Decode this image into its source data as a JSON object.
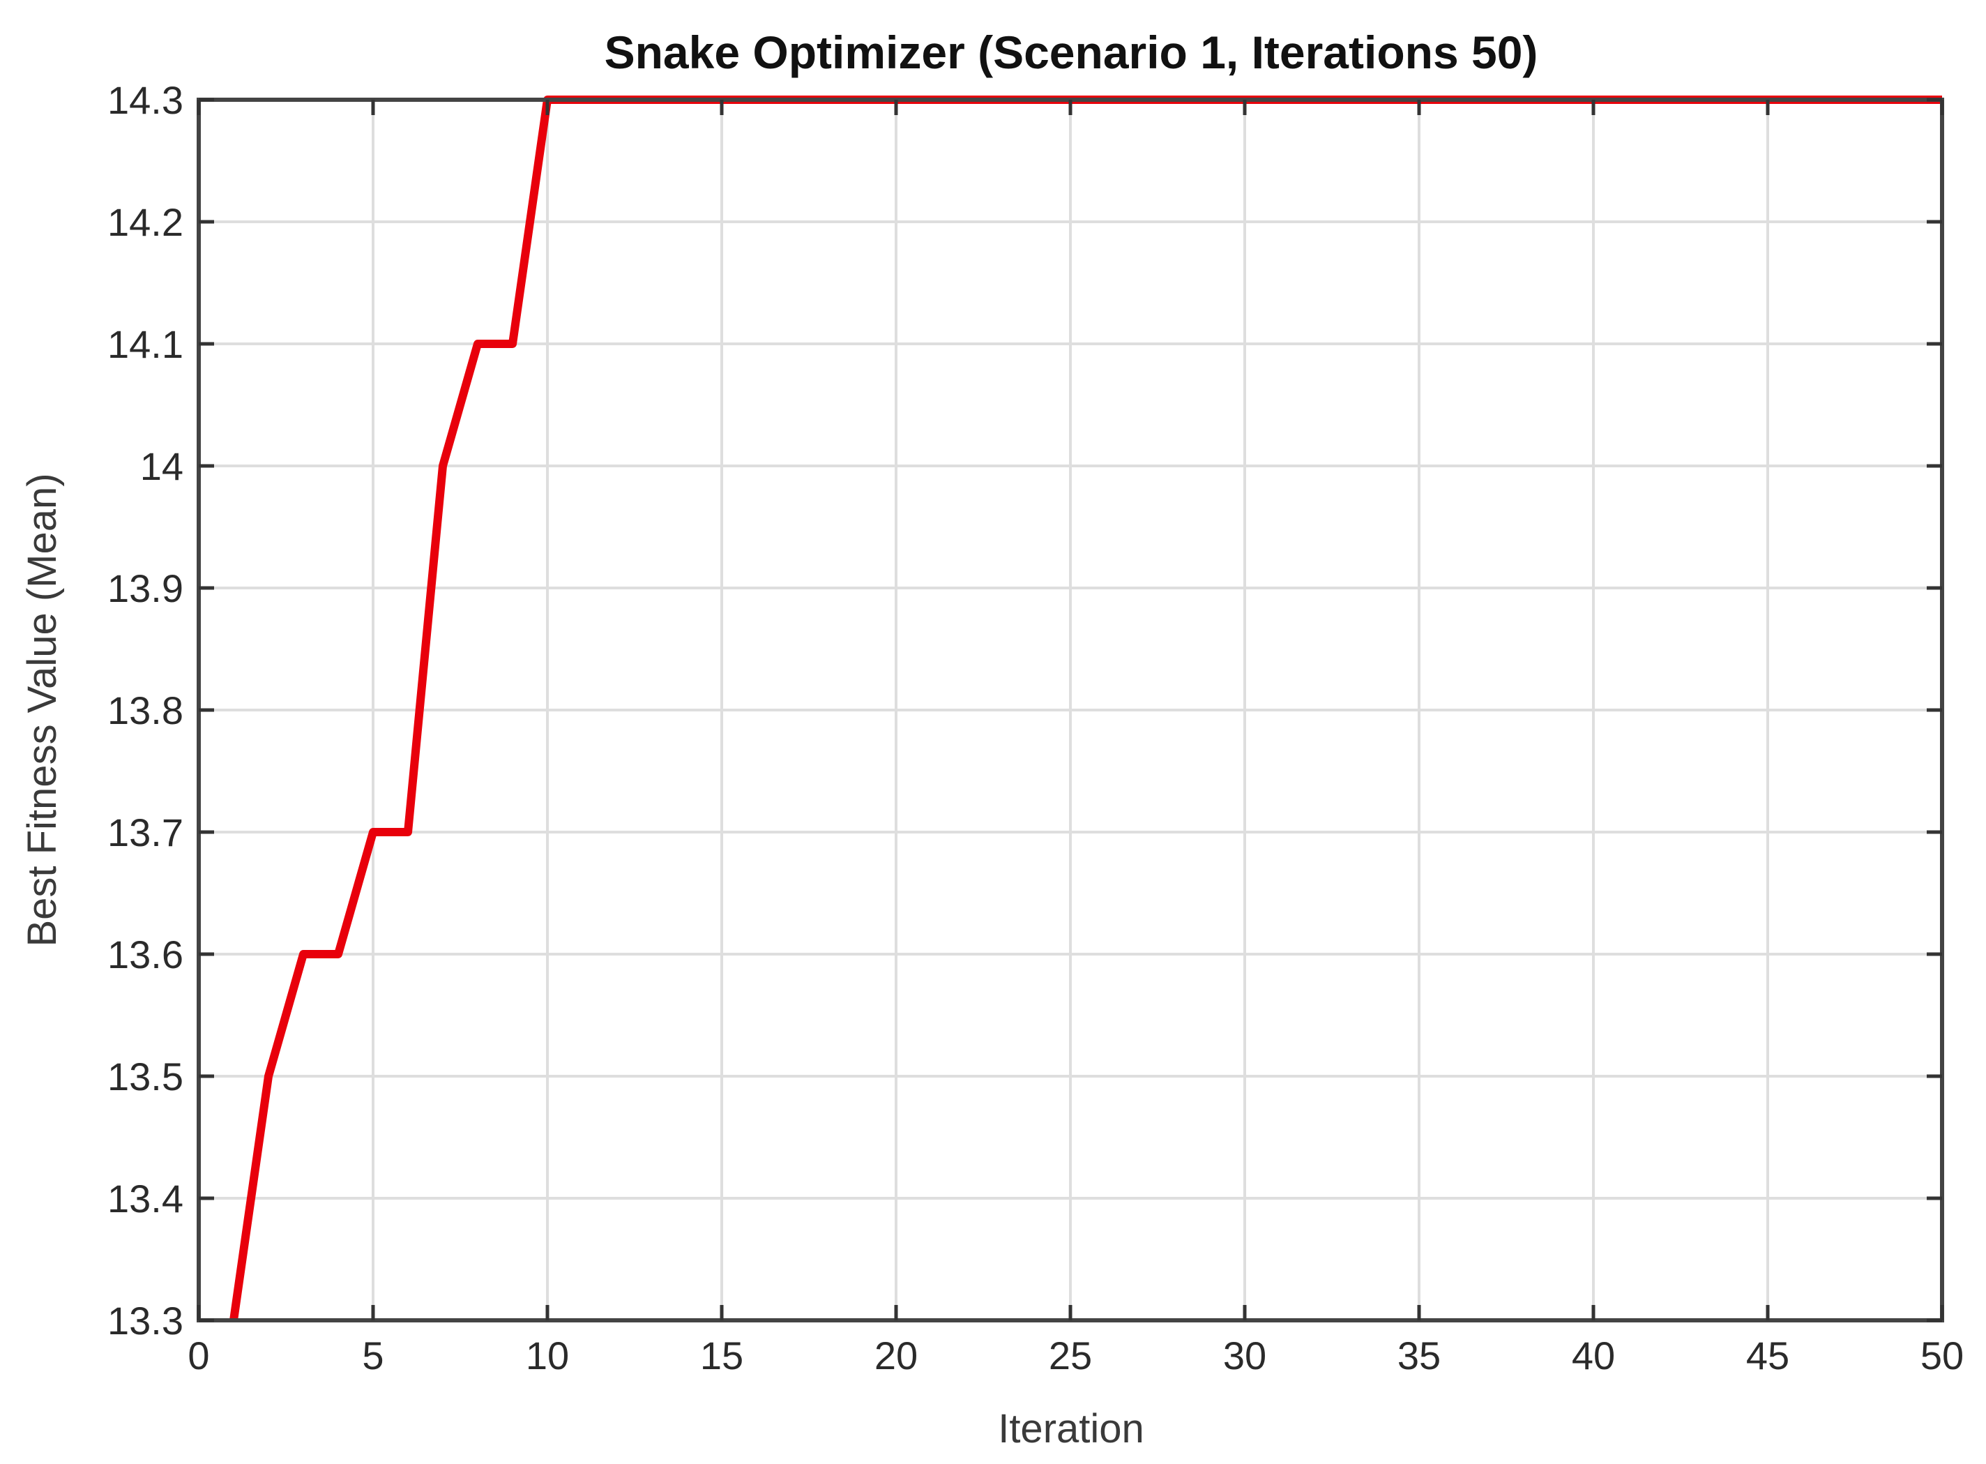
{
  "chart_data": {
    "type": "line",
    "title": "Snake Optimizer (Scenario 1, Iterations 50)",
    "xlabel": "Iteration",
    "ylabel": "Best Fitness Value (Mean)",
    "xlim": [
      0,
      50
    ],
    "ylim": [
      13.3,
      14.3
    ],
    "x_ticks": [
      "0",
      "5",
      "10",
      "15",
      "20",
      "25",
      "30",
      "35",
      "40",
      "45",
      "50"
    ],
    "y_ticks": [
      "13.3",
      "13.4",
      "13.5",
      "13.6",
      "13.7",
      "13.8",
      "13.9",
      "14",
      "14.1",
      "14.2",
      "14.3"
    ],
    "grid": true,
    "series": [
      {
        "color": "#e8000b",
        "x": [
          1,
          2,
          3,
          4,
          5,
          6,
          7,
          8,
          9,
          10,
          11,
          12,
          13,
          14,
          15,
          16,
          17,
          18,
          19,
          20,
          21,
          22,
          23,
          24,
          25,
          26,
          27,
          28,
          29,
          30,
          31,
          32,
          33,
          34,
          35,
          36,
          37,
          38,
          39,
          40,
          41,
          42,
          43,
          44,
          45,
          46,
          47,
          48,
          49,
          50
        ],
        "y": [
          13.3,
          13.5,
          13.6,
          13.6,
          13.7,
          13.7,
          14.0,
          14.1,
          14.1,
          14.3,
          14.3,
          14.3,
          14.3,
          14.3,
          14.3,
          14.3,
          14.3,
          14.3,
          14.3,
          14.3,
          14.3,
          14.3,
          14.3,
          14.3,
          14.3,
          14.3,
          14.3,
          14.3,
          14.3,
          14.3,
          14.3,
          14.3,
          14.3,
          14.3,
          14.3,
          14.3,
          14.3,
          14.3,
          14.3,
          14.3,
          14.3,
          14.3,
          14.3,
          14.3,
          14.3,
          14.3,
          14.3,
          14.3,
          14.3,
          14.3
        ]
      }
    ]
  }
}
